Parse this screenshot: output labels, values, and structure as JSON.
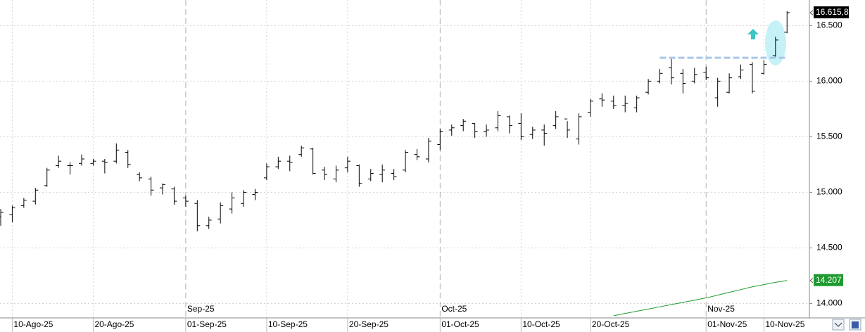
{
  "chart_data": {
    "type": "ohlc",
    "categories": [
      null,
      "10-Ago-25",
      null,
      null,
      null,
      null,
      null,
      null,
      "20-Ago-25",
      null,
      null,
      null,
      null,
      null,
      null,
      null,
      "01-Sep-25",
      null,
      null,
      null,
      null,
      null,
      null,
      "10-Sep-25",
      null,
      null,
      null,
      null,
      null,
      null,
      "20-Sep-25",
      null,
      null,
      null,
      null,
      null,
      null,
      null,
      "01-Oct-25",
      null,
      null,
      null,
      null,
      null,
      null,
      "10-Oct-25",
      null,
      null,
      null,
      null,
      null,
      "20-Oct-25",
      null,
      null,
      null,
      null,
      null,
      null,
      null,
      null,
      null,
      "01-Nov-25",
      null,
      null,
      null,
      null,
      "10-Nov-25",
      null,
      null
    ],
    "month_labels": [
      null,
      null,
      null,
      null,
      null,
      null,
      null,
      null,
      null,
      null,
      null,
      null,
      null,
      null,
      null,
      null,
      "Sep-25",
      null,
      null,
      null,
      null,
      null,
      null,
      null,
      null,
      null,
      null,
      null,
      null,
      null,
      null,
      null,
      null,
      null,
      null,
      null,
      null,
      null,
      "Oct-25",
      null,
      null,
      null,
      null,
      null,
      null,
      null,
      null,
      null,
      null,
      null,
      null,
      null,
      null,
      null,
      null,
      null,
      null,
      null,
      null,
      null,
      null,
      "Nov-25",
      null,
      null,
      null,
      null,
      null,
      null,
      null
    ],
    "open": [
      14780,
      14800,
      14880,
      14920,
      15060,
      15240,
      15240,
      15260,
      15260,
      15280,
      15280,
      15360,
      15160,
      15120,
      15040,
      15030,
      14950,
      14900,
      14700,
      14760,
      14850,
      14900,
      14980,
      15130,
      15230,
      15280,
      15340,
      15390,
      15200,
      15120,
      15220,
      15240,
      15120,
      15160,
      15170,
      15200,
      15340,
      15300,
      15430,
      15560,
      15600,
      15620,
      15550,
      15580,
      15680,
      15620,
      15520,
      15560,
      15600,
      15660,
      15480,
      15720,
      15840,
      15820,
      15780,
      15760,
      15900,
      16000,
      16120,
      16070,
      16000,
      16080,
      15850,
      15900,
      16040,
      16150,
      16070,
      16230,
      16440
    ],
    "high": [
      14850,
      14880,
      14950,
      15040,
      15220,
      15330,
      15270,
      15340,
      15300,
      15300,
      15440,
      15380,
      15180,
      15140,
      15080,
      15050,
      14970,
      14930,
      14780,
      14910,
      15000,
      15020,
      15030,
      15260,
      15320,
      15330,
      15420,
      15400,
      15230,
      15240,
      15320,
      15250,
      15210,
      15250,
      15210,
      15380,
      15390,
      15490,
      15570,
      15610,
      15660,
      15620,
      15610,
      15730,
      15690,
      15710,
      15590,
      15610,
      15730,
      15640,
      15710,
      15840,
      15890,
      15870,
      15870,
      15870,
      16020,
      16110,
      16200,
      16110,
      16120,
      16130,
      16030,
      16070,
      16150,
      16170,
      16190,
      16400,
      16630
    ],
    "low": [
      14700,
      14730,
      14860,
      14890,
      15050,
      15220,
      15160,
      15240,
      15240,
      15170,
      15260,
      15220,
      15100,
      14970,
      14980,
      14890,
      14870,
      14650,
      14670,
      14720,
      14810,
      14870,
      14930,
      15110,
      15210,
      15190,
      15320,
      15160,
      15110,
      15090,
      15180,
      15050,
      15100,
      15090,
      15110,
      15180,
      15290,
      15270,
      15380,
      15510,
      15550,
      15490,
      15500,
      15550,
      15530,
      15470,
      15480,
      15420,
      15570,
      15490,
      15430,
      15680,
      15770,
      15750,
      15720,
      15720,
      15880,
      15980,
      15970,
      15890,
      15980,
      16010,
      15770,
      15890,
      16020,
      15890,
      16060,
      16220,
      16430
    ],
    "close": [
      14820,
      14860,
      14930,
      15020,
      15200,
      15280,
      15240,
      15300,
      15280,
      15270,
      15380,
      15250,
      15130,
      15020,
      15070,
      14920,
      14920,
      14700,
      14750,
      14880,
      14950,
      15000,
      15000,
      15230,
      15280,
      15270,
      15400,
      15170,
      15160,
      15200,
      15280,
      15080,
      15170,
      15200,
      15140,
      15360,
      15320,
      15460,
      15550,
      15580,
      15640,
      15550,
      15560,
      15690,
      15600,
      15500,
      15560,
      15530,
      15680,
      15560,
      15680,
      15820,
      15830,
      15780,
      15800,
      15850,
      16000,
      16070,
      16030,
      15980,
      16060,
      16030,
      16000,
      16030,
      16100,
      15910,
      16150,
      16370,
      16615.8
    ],
    "close_last_label": "16.615,8",
    "color": "#000000",
    "ma": {
      "color": "#1e9b2e",
      "values": [
        null,
        null,
        null,
        null,
        null,
        null,
        null,
        null,
        null,
        null,
        null,
        null,
        null,
        null,
        null,
        null,
        null,
        null,
        null,
        null,
        null,
        null,
        null,
        null,
        null,
        null,
        null,
        null,
        null,
        null,
        null,
        null,
        null,
        null,
        null,
        null,
        null,
        null,
        null,
        null,
        null,
        null,
        null,
        null,
        null,
        null,
        null,
        null,
        null,
        null,
        null,
        null,
        null,
        13890,
        13910,
        13930,
        13950,
        13970,
        13990,
        14010,
        14030,
        14050,
        14075,
        14100,
        14125,
        14150,
        14170,
        14190,
        14207
      ],
      "last_label": "14.207"
    },
    "level": 16210,
    "ylim": [
      13870,
      16730
    ],
    "yticks": [
      {
        "value": 14000,
        "label": "14.000"
      },
      {
        "value": 14500,
        "label": "14.500"
      },
      {
        "value": 15000,
        "label": "15.000"
      },
      {
        "value": 15500,
        "label": "15.500"
      },
      {
        "value": 16000,
        "label": "16.000"
      },
      {
        "value": 16500,
        "label": "16.500"
      }
    ],
    "grid": true
  }
}
